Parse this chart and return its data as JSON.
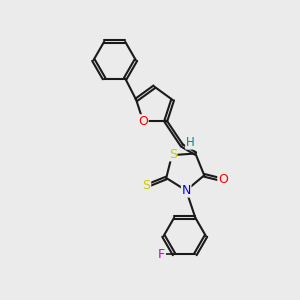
{
  "background_color": "#ebebeb",
  "bond_color": "#1a1a1a",
  "atom_colors": {
    "O": "#ff0000",
    "N": "#0000ee",
    "S": "#cccc00",
    "F": "#cc00cc",
    "C": "#1a1a1a",
    "H": "#008888"
  },
  "figsize": [
    3.0,
    3.0
  ],
  "dpi": 100
}
